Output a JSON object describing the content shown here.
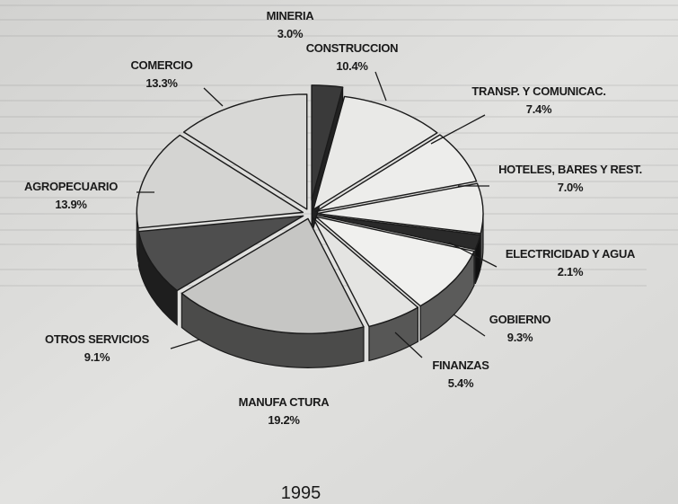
{
  "chart_data": {
    "type": "pie",
    "title": "",
    "caption": "1995",
    "slices": [
      {
        "label": "MINERIA",
        "value": 3.0,
        "value_label": "3.0%",
        "color": "#3a3a3a",
        "exploded": true
      },
      {
        "label": "CONSTRUCCION",
        "value": 10.4,
        "value_label": "10.4%",
        "color": "#e9e9e7"
      },
      {
        "label": "TRANSP. Y COMUNICAC.",
        "value": 7.4,
        "value_label": "7.4%",
        "color": "#ededeb"
      },
      {
        "label": "HOTELES, BARES Y REST.",
        "value": 7.0,
        "value_label": "7.0%",
        "color": "#ececea"
      },
      {
        "label": "ELECTRICIDAD Y AGUA",
        "value": 2.1,
        "value_label": "2.1%",
        "color": "#2a2a2a"
      },
      {
        "label": "GOBIERNO",
        "value": 9.3,
        "value_label": "9.3%",
        "color": "#f0f0ee"
      },
      {
        "label": "FINANZAS",
        "value": 5.4,
        "value_label": "5.4%",
        "color": "#e4e4e2"
      },
      {
        "label": "MANUFA CTURA",
        "value": 19.2,
        "value_label": "19.2%",
        "color": "#c6c6c4"
      },
      {
        "label": "OTROS SERVICIOS",
        "value": 9.1,
        "value_label": "9.1%",
        "color": "#4e4e4e"
      },
      {
        "label": "AGROPECUARIO",
        "value": 13.9,
        "value_label": "13.9%",
        "color": "#d4d4d2"
      },
      {
        "label": "COMERCIO",
        "value": 13.3,
        "value_label": "13.3%",
        "color": "#d8d8d6"
      }
    ],
    "legend": "none",
    "style": "3d-exploded-pie"
  }
}
